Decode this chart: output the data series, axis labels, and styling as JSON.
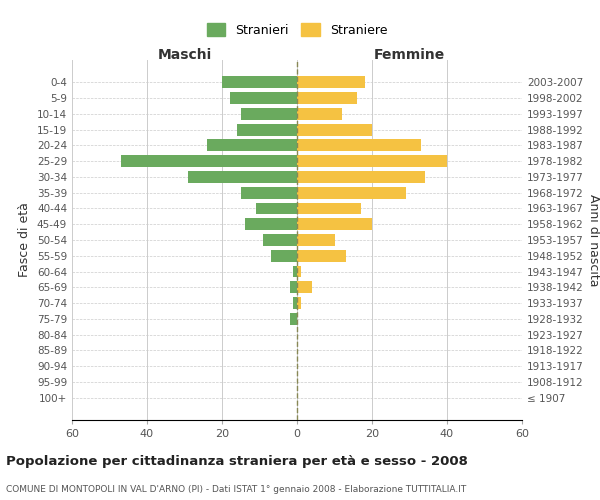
{
  "age_groups": [
    "100+",
    "95-99",
    "90-94",
    "85-89",
    "80-84",
    "75-79",
    "70-74",
    "65-69",
    "60-64",
    "55-59",
    "50-54",
    "45-49",
    "40-44",
    "35-39",
    "30-34",
    "25-29",
    "20-24",
    "15-19",
    "10-14",
    "5-9",
    "0-4"
  ],
  "birth_years": [
    "≤ 1907",
    "1908-1912",
    "1913-1917",
    "1918-1922",
    "1923-1927",
    "1928-1932",
    "1933-1937",
    "1938-1942",
    "1943-1947",
    "1948-1952",
    "1953-1957",
    "1958-1962",
    "1963-1967",
    "1968-1972",
    "1973-1977",
    "1978-1982",
    "1983-1987",
    "1988-1992",
    "1993-1997",
    "1998-2002",
    "2003-2007"
  ],
  "males": [
    0,
    0,
    0,
    0,
    0,
    2,
    1,
    2,
    1,
    7,
    9,
    14,
    11,
    15,
    29,
    47,
    24,
    16,
    15,
    18,
    20
  ],
  "females": [
    0,
    0,
    0,
    0,
    0,
    0,
    1,
    4,
    1,
    13,
    10,
    20,
    17,
    29,
    34,
    40,
    33,
    20,
    12,
    16,
    18
  ],
  "male_color": "#6aaa5e",
  "female_color": "#f5c242",
  "title": "Popolazione per cittadinanza straniera per età e sesso - 2008",
  "subtitle": "COMUNE DI MONTOPOLI IN VAL D'ARNO (PI) - Dati ISTAT 1° gennaio 2008 - Elaborazione TUTTITALIA.IT",
  "ylabel": "Fasce di età",
  "ylabel2": "Anni di nascita",
  "xlabel_left": "Maschi",
  "xlabel_right": "Femmine",
  "legend_male": "Stranieri",
  "legend_female": "Straniere",
  "xlim": 60,
  "background_color": "#ffffff",
  "grid_color": "#cccccc"
}
